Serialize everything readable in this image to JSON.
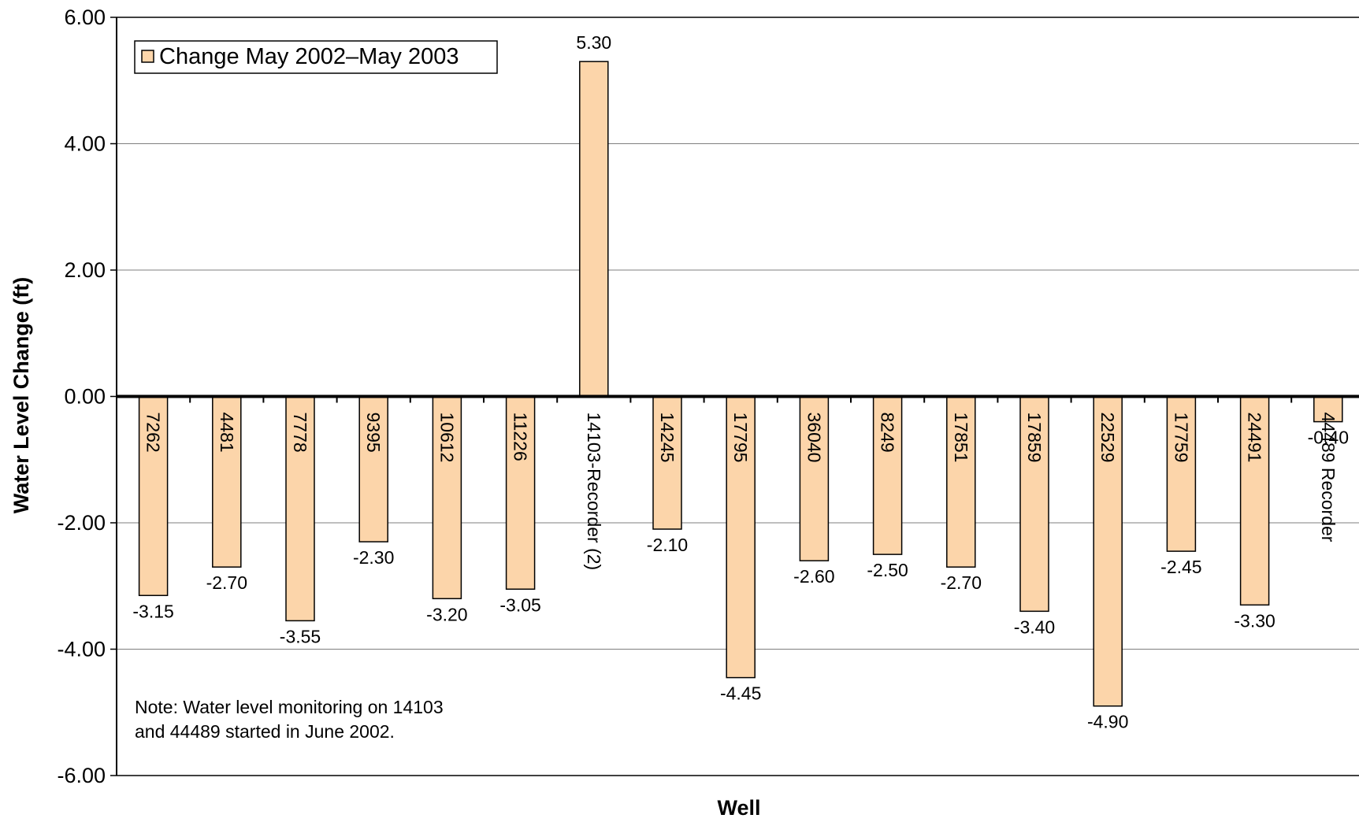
{
  "chart_data": {
    "type": "bar",
    "title": "",
    "xlabel": "Well",
    "ylabel": "Water Level Change (ft)",
    "ylim": [
      -6,
      6
    ],
    "yticks": [
      "6.00",
      "4.00",
      "2.00",
      "0.00",
      "-2.00",
      "-4.00",
      "-6.00"
    ],
    "grid": true,
    "legend_position": "top-left",
    "categories": [
      "7262",
      "4481",
      "7778",
      "9395",
      "10612",
      "11226",
      "14103-Recorder (2)",
      "14245",
      "17795",
      "36040",
      "8249",
      "17851",
      "17859",
      "22529",
      "17759",
      "24491",
      "44489 Recorder"
    ],
    "series": [
      {
        "name": "Change May 2002–May 2003",
        "color": "#FCD5AA",
        "values": [
          -3.15,
          -2.7,
          -3.55,
          -2.3,
          -3.2,
          -3.05,
          5.3,
          -2.1,
          -4.45,
          -2.6,
          -2.5,
          -2.7,
          -3.4,
          -4.9,
          -2.45,
          -3.3,
          -0.4
        ],
        "value_labels": [
          "-3.15",
          "-2.70",
          "-3.55",
          "-2.30",
          "-3.20",
          "-3.05",
          "5.30",
          "-2.10",
          "-4.45",
          "-2.60",
          "-2.50",
          "-2.70",
          "-3.40",
          "-4.90",
          "-2.45",
          "-3.30",
          "-0.40"
        ]
      }
    ],
    "annotation": [
      "Note: Water level monitoring on 14103",
      "and 44489 started in June 2002."
    ]
  }
}
